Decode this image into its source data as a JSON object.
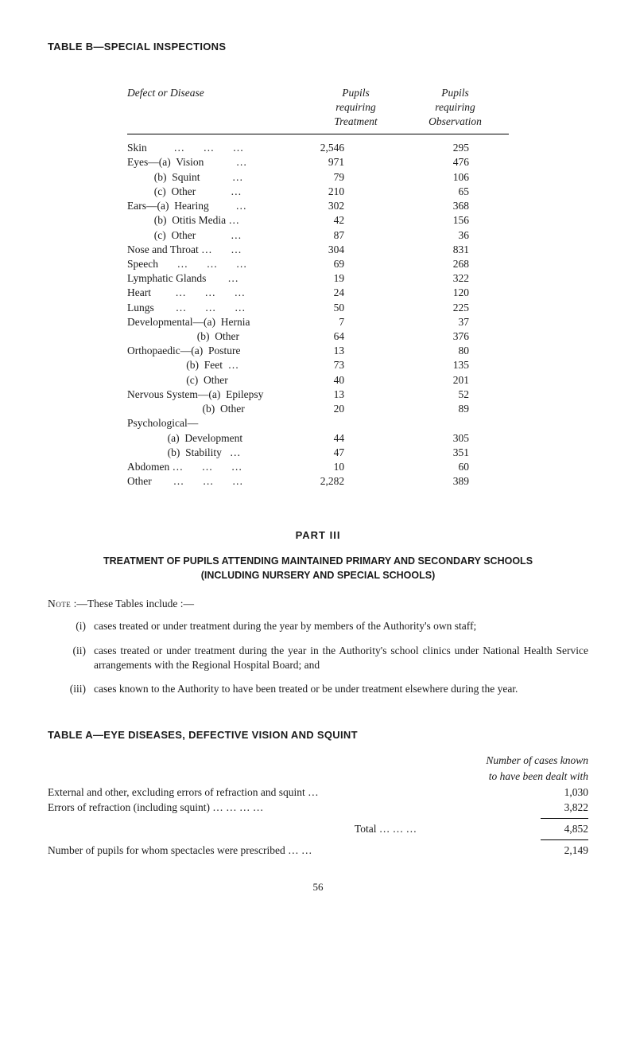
{
  "tableB": {
    "title": "TABLE B—SPECIAL INSPECTIONS",
    "headers": {
      "c1": "Defect or Disease",
      "c2_l1": "Pupils",
      "c2_l2": "requiring",
      "c2_l3": "Treatment",
      "c3_l1": "Pupils",
      "c3_l2": "requiring",
      "c3_l3": "Observation"
    },
    "rows": [
      {
        "label": "Skin          …       …       …",
        "t": "2,546",
        "o": "295"
      },
      {
        "label": "Eyes—(a)  Vision            …",
        "t": "971",
        "o": "476"
      },
      {
        "label": "          (b)  Squint            …",
        "t": "79",
        "o": "106"
      },
      {
        "label": "          (c)  Other             …",
        "t": "210",
        "o": "65"
      },
      {
        "label": "Ears—(a)  Hearing          …",
        "t": "302",
        "o": "368"
      },
      {
        "label": "          (b)  Otitis Media …",
        "t": "42",
        "o": "156"
      },
      {
        "label": "          (c)  Other             …",
        "t": "87",
        "o": "36"
      },
      {
        "label": "Nose and Throat …       …",
        "t": "304",
        "o": "831"
      },
      {
        "label": "Speech       …       …       …",
        "t": "69",
        "o": "268"
      },
      {
        "label": "Lymphatic Glands        …",
        "t": "19",
        "o": "322"
      },
      {
        "label": "Heart         …       …       …",
        "t": "24",
        "o": "120"
      },
      {
        "label": "Lungs        …       …       …",
        "t": "50",
        "o": "225"
      },
      {
        "label": "Developmental—(a)  Hernia",
        "t": "7",
        "o": "37"
      },
      {
        "label": "                          (b)  Other",
        "t": "64",
        "o": "376"
      },
      {
        "label": "Orthopaedic—(a)  Posture",
        "t": "13",
        "o": "80"
      },
      {
        "label": "                      (b)  Feet  …",
        "t": "73",
        "o": "135"
      },
      {
        "label": "                      (c)  Other",
        "t": "40",
        "o": "201"
      },
      {
        "label": "Nervous System—(a)  Epilepsy",
        "t": "13",
        "o": "52"
      },
      {
        "label": "                            (b)  Other",
        "t": "20",
        "o": "89"
      },
      {
        "label": "Psychological—",
        "t": "",
        "o": ""
      },
      {
        "label": "               (a)  Development",
        "t": "44",
        "o": "305"
      },
      {
        "label": "               (b)  Stability   …",
        "t": "47",
        "o": "351"
      },
      {
        "label": "Abdomen …       …       …",
        "t": "10",
        "o": "60"
      },
      {
        "label": "Other        …       …       …",
        "t": "2,282",
        "o": "389"
      }
    ]
  },
  "part3": {
    "heading": "PART   III",
    "title_l1": "TREATMENT OF PUPILS ATTENDING MAINTAINED PRIMARY AND SECONDARY SCHOOLS",
    "title_l2": "(INCLUDING NURSERY AND SPECIAL SCHOOLS)",
    "note_label": "Note",
    "note_rest": " :—These Tables include :—",
    "items": [
      {
        "marker": "(i)",
        "text": "cases treated or under treatment during the year by members of the Authority's own staff;"
      },
      {
        "marker": "(ii)",
        "text": "cases treated or under treatment during the year in the Authority's school clinics under National Health Service arrangements with the Regional Hospital Board; and"
      },
      {
        "marker": "(iii)",
        "text": "cases known to the Authority to have been treated or be under treatment elsewhere during the year."
      }
    ]
  },
  "tableA": {
    "title": "TABLE A—EYE DISEASES, DEFECTIVE VISION AND SQUINT",
    "head_r1": "Number of cases known",
    "head_r2": "to have been dealt with",
    "rows": [
      {
        "label": "External and other, excluding errors of refraction and squint    …",
        "val": "1,030"
      },
      {
        "label": "Errors of refraction (including squint)          …        …        …        …",
        "val": "3,822"
      }
    ],
    "total_label": "Total        …        …        …",
    "total_val": "4,852",
    "prescribed_label": "Number of pupils for whom spectacles were prescribed     …        …",
    "prescribed_val": "2,149"
  },
  "page_number": "56"
}
